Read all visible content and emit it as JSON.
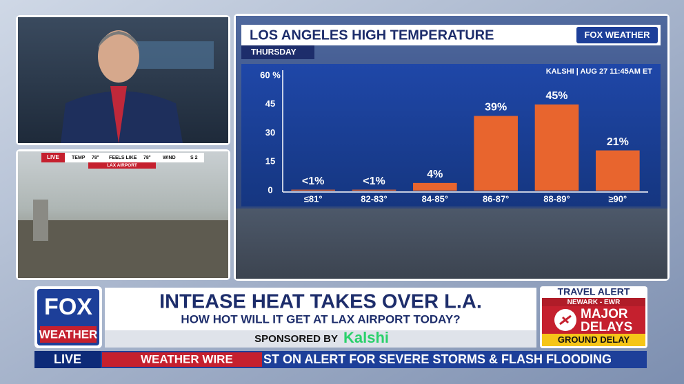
{
  "chart_data": {
    "type": "bar",
    "title": "LOS ANGELES HIGH TEMPERATURE",
    "subtitle": "THURSDAY",
    "source": "KALSHI | AUG 27 11:45AM ET",
    "logo": "FOX WEATHER",
    "categories": [
      "≤81°",
      "82-83°",
      "84-85°",
      "86-87°",
      "88-89°",
      "≥90°"
    ],
    "values": [
      0.5,
      0.5,
      4,
      39,
      45,
      21
    ],
    "value_labels": [
      "<1%",
      "<1%",
      "4%",
      "39%",
      "45%",
      "21%"
    ],
    "color": "#e8652e",
    "ylim": [
      0,
      60
    ],
    "yticks": [
      0,
      15,
      30,
      45,
      {
        "value": 60,
        "label": "60 %"
      }
    ]
  },
  "camera": {
    "live": "LIVE",
    "temp_label": "TEMP",
    "temp": "78°",
    "feels_label": "FEELS LIKE",
    "feels": "78°",
    "wind_label": "WIND",
    "wind": "S 2",
    "location": "LAX AIRPORT"
  },
  "lower_third": {
    "headline": "INTEASE HEAT TAKES OVER L.A.",
    "subhead": "HOW HOT WILL IT GET AT LAX AIRPORT TODAY?",
    "sponsor_label": "SPONSORED BY",
    "sponsor": "Kalshi"
  },
  "brand": {
    "top": "FOX",
    "bottom": "WEATHER"
  },
  "travel_alert": {
    "title": "TRAVEL ALERT",
    "airport": "NEWARK - EWR",
    "line1": "MAJOR",
    "line2": "DELAYS",
    "status": "GROUND DELAY"
  },
  "ticker": {
    "live": "LIVE",
    "label": "WEATHER WIRE",
    "text": "ST ON ALERT FOR SEVERE STORMS & FLASH FLOODING"
  }
}
